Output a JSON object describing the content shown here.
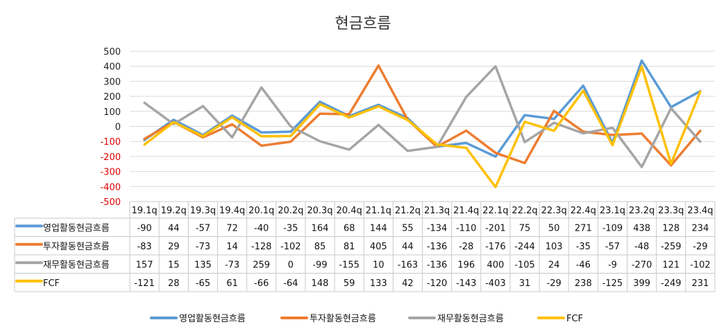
{
  "chart_data": {
    "type": "line",
    "title": "현금흐름",
    "categories": [
      "19.1q",
      "19.2q",
      "19.3q",
      "19.4q",
      "20.1q",
      "20.2q",
      "20.3q",
      "20.4q",
      "21.1q",
      "21.2q",
      "21.3q",
      "21.4q",
      "22.1q",
      "22.2q",
      "22.3q",
      "22.4q",
      "23.1q",
      "23.2q",
      "23.3q",
      "23.4q"
    ],
    "ylim": [
      -500,
      500
    ],
    "yticks": [
      500,
      400,
      300,
      200,
      100,
      0,
      -100,
      -200,
      -300,
      -400,
      -500
    ],
    "grid": true,
    "legend_position": "bottom",
    "series": [
      {
        "name": "영업활동현금흐름",
        "color": "#5b9bd5",
        "values": [
          -90,
          44,
          -57,
          72,
          -40,
          -35,
          164,
          68,
          144,
          55,
          -134,
          -110,
          -201,
          75,
          50,
          271,
          -109,
          438,
          128,
          234
        ]
      },
      {
        "name": "투자활동현금흐름",
        "color": "#ed7d31",
        "values": [
          -83,
          29,
          -73,
          14,
          -128,
          -102,
          85,
          81,
          405,
          44,
          -136,
          -28,
          -176,
          -244,
          103,
          -35,
          -57,
          -48,
          -259,
          -29
        ]
      },
      {
        "name": "재무활동현금흐름",
        "color": "#a5a5a5",
        "values": [
          157,
          15,
          135,
          -73,
          259,
          0,
          -99,
          -155,
          10,
          -163,
          -136,
          196,
          400,
          -105,
          24,
          -46,
          -9,
          -270,
          121,
          -102
        ]
      },
      {
        "name": "FCF",
        "color": "#ffc000",
        "values": [
          -121,
          28,
          -65,
          61,
          -66,
          -64,
          148,
          59,
          133,
          42,
          -120,
          -143,
          -403,
          31,
          -29,
          238,
          -125,
          399,
          -249,
          231
        ]
      }
    ]
  }
}
